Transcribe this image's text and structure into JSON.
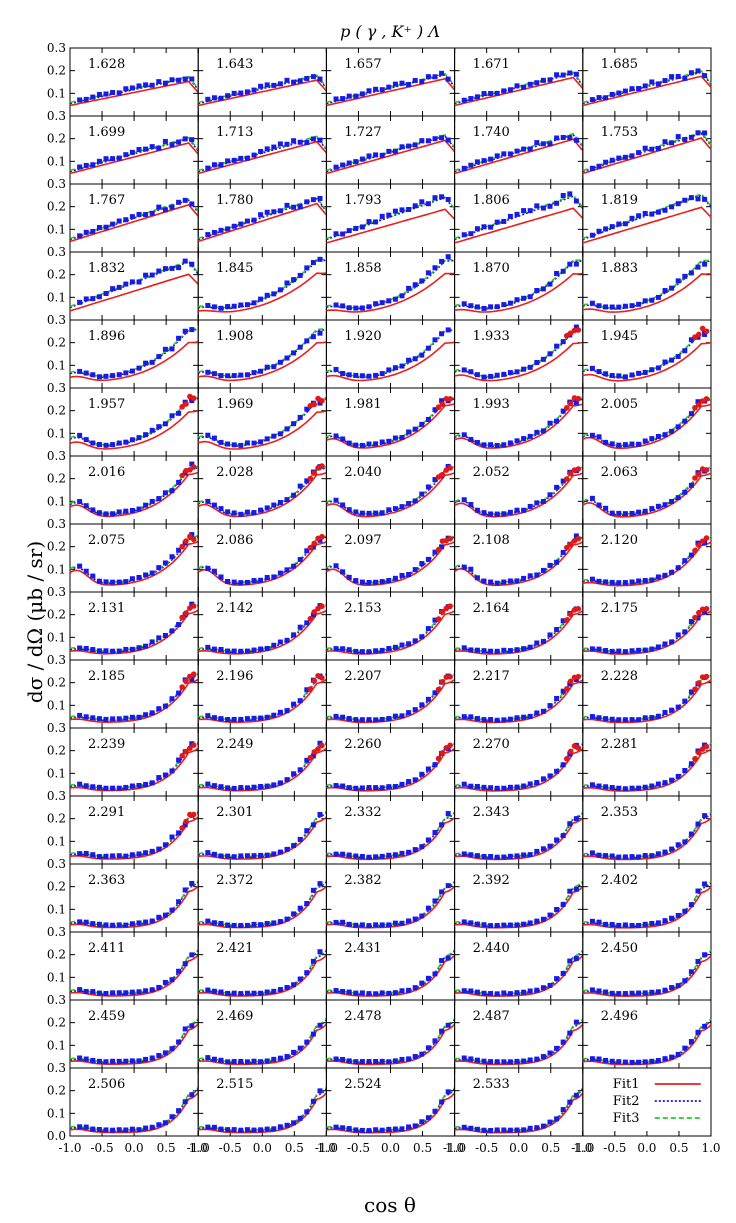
{
  "chart_data": {
    "type": "line",
    "title": "p ( γ , K⁺ ) Λ",
    "xlabel": "cos θ",
    "ylabel": "dσ / dΩ    (μb / sr)",
    "xlim": [
      -1.0,
      1.0
    ],
    "ylim": [
      0.0,
      0.3
    ],
    "x_ticks": [
      "-1.0",
      "-0.5",
      "0.0",
      "0.5",
      "1.0"
    ],
    "y_ticks": [
      "0.0",
      "0.1",
      "0.2",
      "0.3"
    ],
    "grid": false,
    "legend_position": "bottom-right",
    "series": [
      {
        "name": "Fit1",
        "color": "#e8201e",
        "style": "solid"
      },
      {
        "name": "Fit2",
        "color": "#1515c8",
        "style": "dotted"
      },
      {
        "name": "Fit3",
        "color": "#22cc22",
        "style": "dashed"
      }
    ],
    "data_marker_colors": {
      "blue": "#1a1ae6",
      "red": "#e01818"
    },
    "panels": [
      "1.628",
      "1.643",
      "1.657",
      "1.671",
      "1.685",
      "1.699",
      "1.713",
      "1.727",
      "1.740",
      "1.753",
      "1.767",
      "1.780",
      "1.793",
      "1.806",
      "1.819",
      "1.832",
      "1.845",
      "1.858",
      "1.870",
      "1.883",
      "1.896",
      "1.908",
      "1.920",
      "1.933",
      "1.945",
      "1.957",
      "1.969",
      "1.981",
      "1.993",
      "2.005",
      "2.016",
      "2.028",
      "2.040",
      "2.052",
      "2.063",
      "2.075",
      "2.086",
      "2.097",
      "2.108",
      "2.120",
      "2.131",
      "2.142",
      "2.153",
      "2.164",
      "2.175",
      "2.185",
      "2.196",
      "2.207",
      "2.217",
      "2.228",
      "2.239",
      "2.249",
      "2.260",
      "2.270",
      "2.281",
      "2.291",
      "2.301",
      "2.332",
      "2.343",
      "2.353",
      "2.363",
      "2.372",
      "2.382",
      "2.392",
      "2.402",
      "2.411",
      "2.421",
      "2.431",
      "2.440",
      "2.450",
      "2.459",
      "2.469",
      "2.478",
      "2.487",
      "2.496",
      "2.506",
      "2.515",
      "2.524",
      "2.533"
    ]
  }
}
